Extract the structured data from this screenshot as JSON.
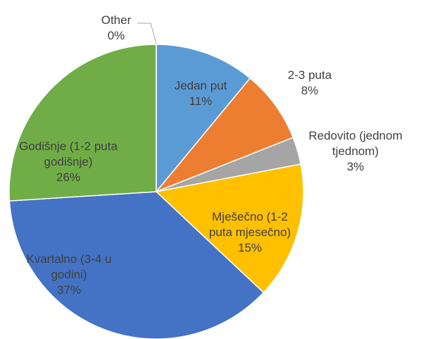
{
  "chart_data": {
    "type": "pie",
    "categories": [
      "Jedan put",
      "2-3 puta",
      "Redovito (jednom tjednom)",
      "Mješečno (1-2 puta mjesečno)",
      "Kvartalno (3-4 u godini)",
      "Godišnje (1-2 puta godišnje)",
      "Other"
    ],
    "values": [
      11,
      8,
      3,
      15,
      37,
      26,
      0
    ],
    "value_labels": [
      "11%",
      "8%",
      "3%",
      "15%",
      "37%",
      "26%",
      "0%"
    ],
    "colors": [
      "#5b9bd5",
      "#ed7d31",
      "#a5a5a5",
      "#ffc000",
      "#4472c4",
      "#70ad47",
      "#264478"
    ]
  }
}
